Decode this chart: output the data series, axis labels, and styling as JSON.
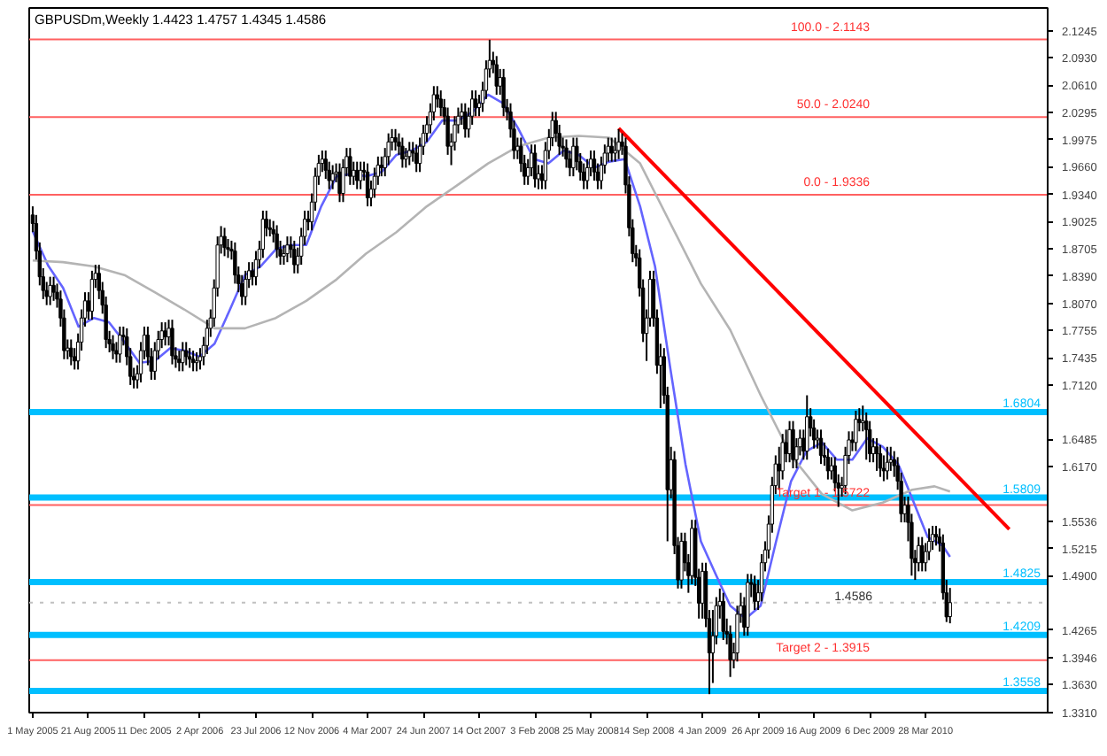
{
  "chart_data": {
    "type": "candlestick",
    "title": "GBPUSDm,Weekly  1.4423 1.4757 1.4345 1.4586",
    "x": [
      "2005-05-01",
      "2005-05-08",
      "2005-05-15",
      "2005-05-22",
      "2005-05-29",
      "2005-06-05",
      "2005-06-12",
      "2005-06-19",
      "2005-06-26",
      "2005-07-03",
      "2005-07-10",
      "2005-07-17",
      "2005-07-24",
      "2005-07-31",
      "2005-08-07",
      "2005-08-14",
      "2005-08-21",
      "2005-08-28",
      "2005-09-04",
      "2005-09-11",
      "2005-09-18",
      "2005-09-25",
      "2005-10-02",
      "2005-10-09",
      "2005-10-16",
      "2005-10-23",
      "2005-10-30",
      "2005-11-06",
      "2005-11-13",
      "2005-11-20",
      "2005-11-27",
      "2005-12-04",
      "2005-12-11",
      "2005-12-18",
      "2005-12-25",
      "2006-01-01",
      "2006-01-08",
      "2006-01-15",
      "2006-01-22",
      "2006-01-29",
      "2006-02-05",
      "2006-02-12",
      "2006-02-19",
      "2006-02-26",
      "2006-03-05",
      "2006-03-12",
      "2006-03-19",
      "2006-03-26",
      "2006-04-02",
      "2006-04-09",
      "2006-04-16",
      "2006-04-23",
      "2006-04-30",
      "2006-05-07",
      "2006-05-14",
      "2006-05-21",
      "2006-05-28",
      "2006-06-04",
      "2006-06-11",
      "2006-06-18",
      "2006-06-25",
      "2006-07-02",
      "2006-07-09",
      "2006-07-16",
      "2006-07-23",
      "2006-07-30",
      "2006-08-06",
      "2006-08-13",
      "2006-08-20",
      "2006-08-27",
      "2006-09-03",
      "2006-09-10",
      "2006-09-17",
      "2006-09-24",
      "2006-10-01",
      "2006-10-08",
      "2006-10-15",
      "2006-10-22",
      "2006-10-29",
      "2006-11-05",
      "2006-11-12",
      "2006-11-19",
      "2006-11-26",
      "2006-12-03",
      "2006-12-10",
      "2006-12-17",
      "2006-12-24",
      "2006-12-31",
      "2007-01-07",
      "2007-01-14",
      "2007-01-21",
      "2007-01-28",
      "2007-02-04",
      "2007-02-11",
      "2007-02-18",
      "2007-02-25",
      "2007-03-04",
      "2007-03-11",
      "2007-03-18",
      "2007-03-25",
      "2007-04-01",
      "2007-04-08",
      "2007-04-15",
      "2007-04-22",
      "2007-04-29",
      "2007-05-06",
      "2007-05-13",
      "2007-05-20",
      "2007-05-27",
      "2007-06-03",
      "2007-06-10",
      "2007-06-17",
      "2007-06-24",
      "2007-07-01",
      "2007-07-08",
      "2007-07-15",
      "2007-07-22",
      "2007-07-29",
      "2007-08-05",
      "2007-08-12",
      "2007-08-19",
      "2007-08-26",
      "2007-09-02",
      "2007-09-09",
      "2007-09-16",
      "2007-09-23",
      "2007-09-30",
      "2007-10-07",
      "2007-10-14",
      "2007-10-21",
      "2007-10-28",
      "2007-11-04",
      "2007-11-11",
      "2007-11-18",
      "2007-11-25",
      "2007-12-02",
      "2007-12-09",
      "2007-12-16",
      "2007-12-23",
      "2007-12-30",
      "2008-01-06",
      "2008-01-13",
      "2008-01-20",
      "2008-01-27",
      "2008-02-03",
      "2008-02-10",
      "2008-02-17",
      "2008-02-24",
      "2008-03-02",
      "2008-03-09",
      "2008-03-16",
      "2008-03-23",
      "2008-03-30",
      "2008-04-06",
      "2008-04-13",
      "2008-04-20",
      "2008-04-27",
      "2008-05-04",
      "2008-05-11",
      "2008-05-18",
      "2008-05-25",
      "2008-06-01",
      "2008-06-08",
      "2008-06-15",
      "2008-06-22",
      "2008-06-29",
      "2008-07-06",
      "2008-07-13",
      "2008-07-20",
      "2008-07-27",
      "2008-08-03",
      "2008-08-10",
      "2008-08-17",
      "2008-08-24",
      "2008-08-31",
      "2008-09-07",
      "2008-09-14",
      "2008-09-21",
      "2008-09-28",
      "2008-10-05",
      "2008-10-12",
      "2008-10-19",
      "2008-10-26",
      "2008-11-02",
      "2008-11-09",
      "2008-11-16",
      "2008-11-23",
      "2008-11-30",
      "2008-12-07",
      "2008-12-14",
      "2008-12-21",
      "2008-12-28",
      "2009-01-04",
      "2009-01-11",
      "2009-01-18",
      "2009-01-25",
      "2009-02-01",
      "2009-02-08",
      "2009-02-15",
      "2009-02-22",
      "2009-03-01",
      "2009-03-08",
      "2009-03-15",
      "2009-03-22",
      "2009-03-29",
      "2009-04-05",
      "2009-04-12",
      "2009-04-19",
      "2009-04-26",
      "2009-05-03",
      "2009-05-10",
      "2009-05-17",
      "2009-05-24",
      "2009-05-31",
      "2009-06-07",
      "2009-06-14",
      "2009-06-21",
      "2009-06-28",
      "2009-07-05",
      "2009-07-12",
      "2009-07-19",
      "2009-07-26",
      "2009-08-02",
      "2009-08-09",
      "2009-08-16",
      "2009-08-23",
      "2009-08-30",
      "2009-09-06",
      "2009-09-13",
      "2009-09-20",
      "2009-09-27",
      "2009-10-04",
      "2009-10-11",
      "2009-10-18",
      "2009-10-25",
      "2009-11-01",
      "2009-11-08",
      "2009-11-15",
      "2009-11-22",
      "2009-11-29",
      "2009-12-06",
      "2009-12-13",
      "2009-12-20",
      "2009-12-27",
      "2010-01-03",
      "2010-01-10",
      "2010-01-17",
      "2010-01-24",
      "2010-01-31",
      "2010-02-07",
      "2010-02-14",
      "2010-02-21",
      "2010-02-28",
      "2010-03-07",
      "2010-03-14",
      "2010-03-21",
      "2010-03-28",
      "2010-04-04",
      "2010-04-11",
      "2010-04-18",
      "2010-04-25",
      "2010-05-02",
      "2010-05-09",
      "2010-05-16"
    ],
    "ohlc": [
      [
        1.91,
        1.92,
        1.89,
        1.9
      ],
      [
        1.9,
        1.91,
        1.858,
        1.868
      ],
      [
        1.868,
        1.878,
        1.828,
        1.838
      ],
      [
        1.838,
        1.848,
        1.812,
        1.822
      ],
      [
        1.822,
        1.832,
        1.805,
        1.815
      ],
      [
        1.815,
        1.838,
        1.805,
        1.828
      ],
      [
        1.828,
        1.838,
        1.81,
        1.82
      ],
      [
        1.82,
        1.83,
        1.802,
        1.812
      ],
      [
        1.812,
        1.822,
        1.78,
        1.79
      ],
      [
        1.79,
        1.8,
        1.742,
        1.752
      ],
      [
        1.752,
        1.765,
        1.742,
        1.755
      ],
      [
        1.755,
        1.765,
        1.735,
        1.745
      ],
      [
        1.745,
        1.755,
        1.73,
        1.74
      ],
      [
        1.74,
        1.772,
        1.73,
        1.762
      ],
      [
        1.762,
        1.8,
        1.752,
        1.79
      ],
      [
        1.79,
        1.82,
        1.78,
        1.81
      ],
      [
        1.81,
        1.82,
        1.788,
        1.798
      ],
      [
        1.798,
        1.845,
        1.788,
        1.835
      ],
      [
        1.835,
        1.852,
        1.825,
        1.842
      ],
      [
        1.842,
        1.852,
        1.812,
        1.822
      ],
      [
        1.822,
        1.832,
        1.795,
        1.805
      ],
      [
        1.805,
        1.815,
        1.755,
        1.765
      ],
      [
        1.765,
        1.775,
        1.75,
        1.76
      ],
      [
        1.76,
        1.77,
        1.742,
        1.752
      ],
      [
        1.752,
        1.762,
        1.738,
        1.748
      ],
      [
        1.748,
        1.78,
        1.738,
        1.77
      ],
      [
        1.77,
        1.78,
        1.758,
        1.768
      ],
      [
        1.768,
        1.778,
        1.735,
        1.745
      ],
      [
        1.745,
        1.755,
        1.712,
        1.722
      ],
      [
        1.722,
        1.732,
        1.708,
        1.718
      ],
      [
        1.718,
        1.735,
        1.708,
        1.725
      ],
      [
        1.725,
        1.762,
        1.715,
        1.752
      ],
      [
        1.752,
        1.78,
        1.742,
        1.77
      ],
      [
        1.77,
        1.78,
        1.735,
        1.745
      ],
      [
        1.745,
        1.755,
        1.718,
        1.728
      ],
      [
        1.728,
        1.762,
        1.718,
        1.752
      ],
      [
        1.752,
        1.775,
        1.742,
        1.765
      ],
      [
        1.765,
        1.785,
        1.755,
        1.775
      ],
      [
        1.775,
        1.785,
        1.758,
        1.768
      ],
      [
        1.768,
        1.788,
        1.758,
        1.778
      ],
      [
        1.778,
        1.788,
        1.736,
        1.746
      ],
      [
        1.746,
        1.756,
        1.732,
        1.742
      ],
      [
        1.742,
        1.752,
        1.728,
        1.738
      ],
      [
        1.738,
        1.762,
        1.728,
        1.752
      ],
      [
        1.752,
        1.762,
        1.735,
        1.745
      ],
      [
        1.745,
        1.755,
        1.732,
        1.742
      ],
      [
        1.742,
        1.752,
        1.728,
        1.738
      ],
      [
        1.738,
        1.75,
        1.728,
        1.74
      ],
      [
        1.74,
        1.755,
        1.73,
        1.745
      ],
      [
        1.745,
        1.768,
        1.735,
        1.758
      ],
      [
        1.758,
        1.788,
        1.748,
        1.778
      ],
      [
        1.778,
        1.8,
        1.768,
        1.79
      ],
      [
        1.79,
        1.835,
        1.78,
        1.825
      ],
      [
        1.825,
        1.885,
        1.815,
        1.875
      ],
      [
        1.875,
        1.897,
        1.865,
        1.885
      ],
      [
        1.885,
        1.895,
        1.862,
        1.872
      ],
      [
        1.872,
        1.882,
        1.86,
        1.87
      ],
      [
        1.87,
        1.88,
        1.858,
        1.868
      ],
      [
        1.868,
        1.878,
        1.83,
        1.84
      ],
      [
        1.84,
        1.85,
        1.82,
        1.83
      ],
      [
        1.83,
        1.84,
        1.805,
        1.815
      ],
      [
        1.815,
        1.845,
        1.805,
        1.835
      ],
      [
        1.835,
        1.855,
        1.825,
        1.845
      ],
      [
        1.845,
        1.855,
        1.828,
        1.838
      ],
      [
        1.838,
        1.868,
        1.828,
        1.858
      ],
      [
        1.858,
        1.88,
        1.848,
        1.87
      ],
      [
        1.87,
        1.915,
        1.86,
        1.905
      ],
      [
        1.905,
        1.915,
        1.885,
        1.895
      ],
      [
        1.895,
        1.905,
        1.885,
        1.893
      ],
      [
        1.893,
        1.903,
        1.878,
        1.888
      ],
      [
        1.888,
        1.898,
        1.86,
        1.87
      ],
      [
        1.87,
        1.88,
        1.852,
        1.862
      ],
      [
        1.862,
        1.875,
        1.852,
        1.865
      ],
      [
        1.865,
        1.885,
        1.855,
        1.875
      ],
      [
        1.875,
        1.885,
        1.86,
        1.87
      ],
      [
        1.87,
        1.88,
        1.842,
        1.852
      ],
      [
        1.852,
        1.872,
        1.842,
        1.862
      ],
      [
        1.862,
        1.895,
        1.852,
        1.885
      ],
      [
        1.885,
        1.915,
        1.875,
        1.905
      ],
      [
        1.905,
        1.915,
        1.892,
        1.902
      ],
      [
        1.902,
        1.935,
        1.892,
        1.925
      ],
      [
        1.925,
        1.965,
        1.915,
        1.955
      ],
      [
        1.955,
        1.98,
        1.945,
        1.97
      ],
      [
        1.97,
        1.985,
        1.96,
        1.975
      ],
      [
        1.975,
        1.985,
        1.952,
        1.962
      ],
      [
        1.962,
        1.972,
        1.94,
        1.95
      ],
      [
        1.95,
        1.968,
        1.94,
        1.958
      ],
      [
        1.958,
        1.97,
        1.948,
        1.96
      ],
      [
        1.96,
        1.97,
        1.925,
        1.935
      ],
      [
        1.935,
        1.975,
        1.925,
        1.965
      ],
      [
        1.965,
        1.988,
        1.955,
        1.978
      ],
      [
        1.978,
        1.988,
        1.945,
        1.955
      ],
      [
        1.955,
        1.972,
        1.945,
        1.962
      ],
      [
        1.962,
        1.972,
        1.94,
        1.95
      ],
      [
        1.95,
        1.972,
        1.94,
        1.962
      ],
      [
        1.962,
        1.972,
        1.95,
        1.96
      ],
      [
        1.96,
        1.97,
        1.92,
        1.93
      ],
      [
        1.93,
        1.95,
        1.92,
        1.94
      ],
      [
        1.94,
        1.965,
        1.93,
        1.955
      ],
      [
        1.955,
        1.978,
        1.945,
        1.968
      ],
      [
        1.968,
        1.978,
        1.955,
        1.965
      ],
      [
        1.965,
        1.988,
        1.955,
        1.978
      ],
      [
        1.978,
        2.005,
        1.968,
        1.995
      ],
      [
        1.995,
        2.01,
        1.985,
        2.0
      ],
      [
        2.0,
        2.01,
        1.985,
        1.995
      ],
      [
        1.995,
        2.005,
        1.98,
        1.99
      ],
      [
        1.99,
        2.0,
        1.965,
        1.975
      ],
      [
        1.975,
        1.988,
        1.965,
        1.978
      ],
      [
        1.978,
        1.995,
        1.968,
        1.985
      ],
      [
        1.985,
        1.995,
        1.972,
        1.982
      ],
      [
        1.982,
        1.992,
        1.96,
        1.97
      ],
      [
        1.97,
        2.0,
        1.96,
        1.99
      ],
      [
        1.99,
        2.015,
        1.98,
        2.005
      ],
      [
        2.005,
        2.025,
        1.995,
        2.015
      ],
      [
        2.015,
        2.04,
        2.005,
        2.03
      ],
      [
        2.03,
        2.06,
        2.02,
        2.05
      ],
      [
        2.05,
        2.06,
        2.035,
        2.045
      ],
      [
        2.045,
        2.055,
        2.025,
        2.035
      ],
      [
        2.035,
        2.045,
        2.015,
        2.025
      ],
      [
        2.025,
        2.035,
        1.98,
        1.99
      ],
      [
        1.99,
        2.005,
        1.968,
        1.995
      ],
      [
        1.995,
        2.025,
        1.985,
        2.015
      ],
      [
        2.015,
        2.035,
        2.005,
        2.025
      ],
      [
        2.025,
        2.04,
        2.015,
        2.03
      ],
      [
        2.03,
        2.04,
        2.0,
        2.01
      ],
      [
        2.01,
        2.035,
        2.0,
        2.025
      ],
      [
        2.025,
        2.055,
        2.015,
        2.045
      ],
      [
        2.045,
        2.055,
        2.025,
        2.035
      ],
      [
        2.035,
        2.05,
        2.025,
        2.04
      ],
      [
        2.04,
        2.065,
        2.03,
        2.055
      ],
      [
        2.055,
        2.09,
        2.045,
        2.08
      ],
      [
        2.08,
        2.114,
        2.07,
        2.09
      ],
      [
        2.09,
        2.1,
        2.075,
        2.085
      ],
      [
        2.085,
        2.095,
        2.05,
        2.06
      ],
      [
        2.06,
        2.08,
        2.05,
        2.07
      ],
      [
        2.07,
        2.08,
        2.025,
        2.035
      ],
      [
        2.035,
        2.045,
        2.02,
        2.03
      ],
      [
        2.03,
        2.04,
        2.0,
        2.01
      ],
      [
        2.01,
        2.02,
        1.975,
        1.985
      ],
      [
        1.985,
        2.0,
        1.975,
        1.99
      ],
      [
        1.99,
        2.0,
        1.96,
        1.97
      ],
      [
        1.97,
        1.98,
        1.945,
        1.955
      ],
      [
        1.955,
        1.975,
        1.945,
        1.965
      ],
      [
        1.965,
        1.992,
        1.955,
        1.982
      ],
      [
        1.982,
        1.992,
        1.942,
        1.952
      ],
      [
        1.952,
        1.968,
        1.94,
        1.958
      ],
      [
        1.958,
        1.968,
        1.94,
        1.95
      ],
      [
        1.95,
        1.995,
        1.94,
        1.985
      ],
      [
        1.985,
        2.01,
        1.975,
        2.0
      ],
      [
        2.0,
        2.03,
        1.99,
        2.02
      ],
      [
        2.02,
        2.03,
        1.995,
        2.005
      ],
      [
        2.005,
        2.015,
        1.98,
        1.99
      ],
      [
        1.99,
        2.0,
        1.978,
        1.988
      ],
      [
        1.988,
        1.998,
        1.965,
        1.975
      ],
      [
        1.975,
        1.985,
        1.955,
        1.965
      ],
      [
        1.965,
        2.0,
        1.955,
        1.99
      ],
      [
        1.99,
        2.0,
        1.962,
        1.972
      ],
      [
        1.972,
        1.982,
        1.95,
        1.96
      ],
      [
        1.96,
        1.97,
        1.94,
        1.95
      ],
      [
        1.95,
        1.975,
        1.94,
        1.965
      ],
      [
        1.965,
        1.985,
        1.955,
        1.975
      ],
      [
        1.975,
        1.985,
        1.95,
        1.96
      ],
      [
        1.96,
        1.97,
        1.94,
        1.95
      ],
      [
        1.95,
        1.978,
        1.94,
        1.968
      ],
      [
        1.968,
        1.992,
        1.958,
        1.982
      ],
      [
        1.982,
        2.0,
        1.972,
        1.99
      ],
      [
        1.99,
        2.0,
        1.972,
        1.982
      ],
      [
        1.982,
        2.0,
        1.972,
        1.985
      ],
      [
        1.985,
        2.01,
        1.975,
        1.995
      ],
      [
        1.995,
        2.005,
        1.98,
        1.99
      ],
      [
        1.99,
        2.0,
        1.935,
        1.945
      ],
      [
        1.945,
        1.955,
        1.885,
        1.895
      ],
      [
        1.895,
        1.905,
        1.855,
        1.865
      ],
      [
        1.865,
        1.875,
        1.85,
        1.86
      ],
      [
        1.86,
        1.87,
        1.815,
        1.825
      ],
      [
        1.825,
        1.835,
        1.762,
        1.772
      ],
      [
        1.772,
        1.8,
        1.74,
        1.79
      ],
      [
        1.79,
        1.845,
        1.78,
        1.835
      ],
      [
        1.835,
        1.845,
        1.78,
        1.79
      ],
      [
        1.79,
        1.8,
        1.725,
        1.735
      ],
      [
        1.735,
        1.76,
        1.685,
        1.745
      ],
      [
        1.745,
        1.755,
        1.69,
        1.7
      ],
      [
        1.7,
        1.71,
        1.53,
        1.59
      ],
      [
        1.59,
        1.64,
        1.58,
        1.625
      ],
      [
        1.625,
        1.635,
        1.515,
        1.525
      ],
      [
        1.525,
        1.535,
        1.475,
        1.485
      ],
      [
        1.485,
        1.54,
        1.475,
        1.53
      ],
      [
        1.53,
        1.54,
        1.495,
        1.505
      ],
      [
        1.505,
        1.515,
        1.47,
        1.49
      ],
      [
        1.49,
        1.555,
        1.48,
        1.545
      ],
      [
        1.545,
        1.555,
        1.478,
        1.488
      ],
      [
        1.488,
        1.498,
        1.44,
        1.458
      ],
      [
        1.458,
        1.505,
        1.44,
        1.495
      ],
      [
        1.495,
        1.505,
        1.43,
        1.44
      ],
      [
        1.44,
        1.45,
        1.352,
        1.4
      ],
      [
        1.4,
        1.45,
        1.365,
        1.42
      ],
      [
        1.42,
        1.465,
        1.41,
        1.455
      ],
      [
        1.455,
        1.475,
        1.44,
        1.46
      ],
      [
        1.46,
        1.47,
        1.415,
        1.425
      ],
      [
        1.425,
        1.44,
        1.41,
        1.422
      ],
      [
        1.422,
        1.432,
        1.372,
        1.392
      ],
      [
        1.392,
        1.412,
        1.382,
        1.4
      ],
      [
        1.4,
        1.455,
        1.39,
        1.445
      ],
      [
        1.445,
        1.47,
        1.435,
        1.455
      ],
      [
        1.455,
        1.465,
        1.42,
        1.43
      ],
      [
        1.43,
        1.492,
        1.42,
        1.482
      ],
      [
        1.482,
        1.492,
        1.465,
        1.48
      ],
      [
        1.48,
        1.49,
        1.45,
        1.46
      ],
      [
        1.46,
        1.485,
        1.45,
        1.47
      ],
      [
        1.47,
        1.515,
        1.46,
        1.505
      ],
      [
        1.505,
        1.53,
        1.495,
        1.52
      ],
      [
        1.52,
        1.56,
        1.51,
        1.55
      ],
      [
        1.55,
        1.605,
        1.54,
        1.595
      ],
      [
        1.595,
        1.63,
        1.585,
        1.62
      ],
      [
        1.62,
        1.64,
        1.59,
        1.612
      ],
      [
        1.612,
        1.655,
        1.602,
        1.645
      ],
      [
        1.645,
        1.66,
        1.622,
        1.632
      ],
      [
        1.632,
        1.67,
        1.622,
        1.66
      ],
      [
        1.66,
        1.67,
        1.615,
        1.625
      ],
      [
        1.625,
        1.65,
        1.615,
        1.64
      ],
      [
        1.64,
        1.66,
        1.63,
        1.65
      ],
      [
        1.65,
        1.66,
        1.625,
        1.635
      ],
      [
        1.635,
        1.7,
        1.625,
        1.675
      ],
      [
        1.675,
        1.685,
        1.652,
        1.662
      ],
      [
        1.662,
        1.672,
        1.638,
        1.648
      ],
      [
        1.648,
        1.66,
        1.638,
        1.65
      ],
      [
        1.65,
        1.66,
        1.62,
        1.63
      ],
      [
        1.63,
        1.645,
        1.618,
        1.628
      ],
      [
        1.628,
        1.638,
        1.602,
        1.612
      ],
      [
        1.612,
        1.628,
        1.602,
        1.618
      ],
      [
        1.618,
        1.628,
        1.588,
        1.598
      ],
      [
        1.598,
        1.608,
        1.57,
        1.592
      ],
      [
        1.592,
        1.605,
        1.582,
        1.595
      ],
      [
        1.595,
        1.64,
        1.585,
        1.63
      ],
      [
        1.63,
        1.658,
        1.62,
        1.648
      ],
      [
        1.648,
        1.658,
        1.635,
        1.645
      ],
      [
        1.645,
        1.682,
        1.635,
        1.672
      ],
      [
        1.672,
        1.685,
        1.658,
        1.668
      ],
      [
        1.668,
        1.688,
        1.658,
        1.67
      ],
      [
        1.67,
        1.68,
        1.625,
        1.66
      ],
      [
        1.66,
        1.67,
        1.622,
        1.632
      ],
      [
        1.632,
        1.65,
        1.622,
        1.64
      ],
      [
        1.64,
        1.65,
        1.612,
        1.632
      ],
      [
        1.632,
        1.642,
        1.605,
        1.615
      ],
      [
        1.615,
        1.63,
        1.6,
        1.612
      ],
      [
        1.612,
        1.64,
        1.602,
        1.622
      ],
      [
        1.622,
        1.64,
        1.612,
        1.625
      ],
      [
        1.625,
        1.635,
        1.605,
        1.618
      ],
      [
        1.618,
        1.628,
        1.59,
        1.6
      ],
      [
        1.6,
        1.61,
        1.552,
        1.562
      ],
      [
        1.562,
        1.582,
        1.552,
        1.572
      ],
      [
        1.572,
        1.582,
        1.53,
        1.552
      ],
      [
        1.552,
        1.562,
        1.49,
        1.51
      ],
      [
        1.51,
        1.52,
        1.485,
        1.505
      ],
      [
        1.505,
        1.535,
        1.495,
        1.525
      ],
      [
        1.525,
        1.535,
        1.495,
        1.505
      ],
      [
        1.505,
        1.528,
        1.495,
        1.518
      ],
      [
        1.518,
        1.545,
        1.508,
        1.53
      ],
      [
        1.53,
        1.548,
        1.52,
        1.538
      ],
      [
        1.538,
        1.548,
        1.525,
        1.535
      ],
      [
        1.535,
        1.545,
        1.518,
        1.528
      ],
      [
        1.528,
        1.538,
        1.462,
        1.47
      ],
      [
        1.47,
        1.485,
        1.436,
        1.442
      ],
      [
        1.4423,
        1.4757,
        1.4345,
        1.4586
      ]
    ],
    "series": [
      {
        "type": "line",
        "color": "#6464ff",
        "x": [
          "2005-05-01",
          "2005-06-01",
          "2005-07-01",
          "2005-08-01",
          "2005-09-01",
          "2005-10-01",
          "2005-11-01",
          "2005-12-01",
          "2006-01-01",
          "2006-02-01",
          "2006-03-01",
          "2006-04-01",
          "2006-05-01",
          "2006-06-01",
          "2006-07-01",
          "2006-08-01",
          "2006-09-01",
          "2006-10-01",
          "2006-11-01",
          "2006-12-01",
          "2007-01-01",
          "2007-02-01",
          "2007-03-01",
          "2007-04-01",
          "2007-05-01",
          "2007-06-01",
          "2007-07-01",
          "2007-08-01",
          "2007-09-01",
          "2007-10-01",
          "2007-11-01",
          "2007-12-01",
          "2008-01-01",
          "2008-02-01",
          "2008-03-01",
          "2008-04-01",
          "2008-05-01",
          "2008-06-01",
          "2008-07-01",
          "2008-08-01",
          "2008-09-01",
          "2008-10-01",
          "2008-11-01",
          "2008-12-01",
          "2009-01-01",
          "2009-02-01",
          "2009-03-01",
          "2009-04-01",
          "2009-05-01",
          "2009-06-01",
          "2009-07-01",
          "2009-08-01",
          "2009-09-01",
          "2009-10-01",
          "2009-11-01",
          "2009-12-01",
          "2010-01-01",
          "2010-02-01",
          "2010-03-01",
          "2010-04-01",
          "2010-05-01",
          "2010-05-16"
        ],
        "values": [
          1.891,
          1.851,
          1.825,
          1.78,
          1.79,
          1.785,
          1.762,
          1.738,
          1.74,
          1.755,
          1.752,
          1.745,
          1.76,
          1.8,
          1.84,
          1.85,
          1.87,
          1.875,
          1.875,
          1.92,
          1.955,
          1.958,
          1.955,
          1.96,
          1.98,
          1.985,
          1.995,
          2.02,
          2.02,
          2.03,
          2.05,
          2.04,
          2.01,
          1.975,
          1.97,
          1.985,
          1.98,
          1.965,
          1.972,
          1.975,
          1.92,
          1.85,
          1.73,
          1.62,
          1.53,
          1.49,
          1.455,
          1.44,
          1.455,
          1.53,
          1.6,
          1.635,
          1.645,
          1.625,
          1.625,
          1.65,
          1.64,
          1.62,
          1.58,
          1.535,
          1.525,
          1.512
        ]
      },
      {
        "type": "line",
        "color": "#b4b4b4",
        "x": [
          "2005-05-01",
          "2005-07-01",
          "2005-09-01",
          "2005-11-01",
          "2006-01-01",
          "2006-03-01",
          "2006-05-01",
          "2006-07-01",
          "2006-09-01",
          "2006-11-01",
          "2007-01-01",
          "2007-03-01",
          "2007-05-01",
          "2007-07-01",
          "2007-09-01",
          "2007-11-01",
          "2008-01-01",
          "2008-03-01",
          "2008-05-01",
          "2008-07-01",
          "2008-09-01",
          "2008-11-01",
          "2009-01-01",
          "2009-03-01",
          "2009-05-01",
          "2009-07-01",
          "2009-09-01",
          "2009-11-01",
          "2010-01-01",
          "2010-03-01",
          "2010-04-15",
          "2010-05-16"
        ],
        "values": [
          1.857,
          1.855,
          1.85,
          1.84,
          1.82,
          1.8,
          1.778,
          1.778,
          1.79,
          1.81,
          1.835,
          1.865,
          1.89,
          1.92,
          1.945,
          1.97,
          1.99,
          2.0,
          2.002,
          2.0,
          1.97,
          1.9,
          1.83,
          1.776,
          1.7,
          1.63,
          1.585,
          1.566,
          1.575,
          1.59,
          1.594,
          1.588
        ]
      },
      {
        "type": "line",
        "color": "#ff0000",
        "x": [
          "2008-07-20",
          "2010-09-12"
        ],
        "values": [
          2.011,
          1.544
        ]
      }
    ],
    "xlim": [
      "2005-04-24",
      "2010-11-28"
    ],
    "xticks": [
      {
        "value": "2005-05-01",
        "label": "1 May 2005"
      },
      {
        "value": "2005-08-21",
        "label": "21 Aug 2005"
      },
      {
        "value": "2005-12-11",
        "label": "11 Dec 2005"
      },
      {
        "value": "2006-04-02",
        "label": "2 Apr 2006"
      },
      {
        "value": "2006-07-23",
        "label": "23 Jul 2006"
      },
      {
        "value": "2006-11-12",
        "label": "12 Nov 2006"
      },
      {
        "value": "2007-03-04",
        "label": "4 Mar 2007"
      },
      {
        "value": "2007-06-24",
        "label": "24 Jun 2007"
      },
      {
        "value": "2007-10-14",
        "label": "14 Oct 2007"
      },
      {
        "value": "2008-02-03",
        "label": "3 Feb 2008"
      },
      {
        "value": "2008-05-25",
        "label": "25 May 2008"
      },
      {
        "value": "2008-09-14",
        "label": "14 Sep 2008"
      },
      {
        "value": "2009-01-04",
        "label": "4 Jan 2009"
      },
      {
        "value": "2009-04-26",
        "label": "26 Apr 2009"
      },
      {
        "value": "2009-08-16",
        "label": "16 Aug 2009"
      },
      {
        "value": "2009-12-06",
        "label": "6 Dec 2009"
      },
      {
        "value": "2010-03-28",
        "label": "28 Mar 2010"
      }
    ],
    "ylim": [
      1.3305,
      2.151
    ],
    "yticks": [
      2.1245,
      {
        "value": 2.093,
        "label": "2.0930"
      },
      {
        "value": 2.061,
        "label": "2.0610"
      },
      2.0295,
      1.9975,
      {
        "value": 1.966,
        "label": "1.9660"
      },
      {
        "value": 1.934,
        "label": "1.9340"
      },
      1.9025,
      1.8705,
      {
        "value": 1.839,
        "label": "1.8390"
      },
      {
        "value": 1.807,
        "label": "1.8070"
      },
      1.7755,
      1.7435,
      {
        "value": 1.712,
        "label": "1.7120"
      },
      1.6485,
      {
        "value": 1.617,
        "label": "1.6170"
      },
      1.5536,
      1.5215,
      {
        "value": 1.49,
        "label": "1.4900"
      },
      1.4265,
      1.3946,
      {
        "value": 1.363,
        "label": "1.3630"
      },
      {
        "value": 1.331,
        "label": "1.3310"
      }
    ],
    "ref_lines": [
      {
        "axis": "y",
        "value": 1.6804,
        "label": "1.6804",
        "color": "#00bfff"
      },
      {
        "axis": "y",
        "value": 1.5809,
        "label": "1.5809",
        "color": "#00bfff"
      },
      {
        "axis": "y",
        "value": 1.4825,
        "label": "1.4825",
        "color": "#00bfff"
      },
      {
        "axis": "y",
        "value": 1.4209,
        "label": "1.4209",
        "color": "#00bfff"
      },
      {
        "axis": "y",
        "value": 1.3558,
        "label": "1.3558",
        "color": "#00bfff"
      },
      {
        "axis": "y",
        "value": 1.4586,
        "label": "1.4586",
        "color": "#c0c0c0",
        "line_style": "dotted"
      },
      {
        "axis": "y",
        "value": 2.1143,
        "color": "#ff6060",
        "line_style": "solid"
      },
      {
        "axis": "y",
        "value": 2.024,
        "color": "#ff6060",
        "line_style": "solid"
      },
      {
        "axis": "y",
        "value": 1.9336,
        "color": "#ff6060",
        "line_style": "solid"
      },
      {
        "axis": "y",
        "value": 1.5722,
        "color": "#ff6060",
        "line_style": "solid"
      },
      {
        "axis": "y",
        "value": 1.3915,
        "color": "#ff6060",
        "line_style": "solid"
      }
    ],
    "annotations": [
      {
        "text": "100.0 - 2.1143",
        "x": "2009-12-06",
        "y": 2.1143
      },
      {
        "text": "50.0 - 2.0240",
        "x": "2009-12-06",
        "y": 2.024
      },
      {
        "text": "0.0 - 1.9336",
        "x": "2009-12-06",
        "y": 1.9336
      },
      {
        "text": "Target 1 - 1.5722",
        "x": "2009-12-06",
        "y": 1.5722
      },
      {
        "text": "Target 2 - 1.3915",
        "x": "2009-12-06",
        "y": 1.3915
      }
    ],
    "grid": false
  }
}
